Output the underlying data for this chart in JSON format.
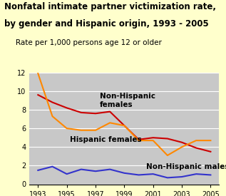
{
  "title_line1": "Nonfatal intimate partner victimization rate,",
  "title_line2": "by gender and Hispanic origin, 1993 - 2005",
  "subtitle": "Rate per 1,000 persons age 12 or older",
  "years": [
    1993,
    1994,
    1995,
    1996,
    1997,
    1998,
    1999,
    2000,
    2001,
    2002,
    2003,
    2004,
    2005
  ],
  "non_hispanic_females": [
    9.6,
    8.8,
    8.2,
    7.7,
    7.6,
    7.8,
    6.3,
    4.8,
    5.0,
    4.9,
    4.5,
    3.9,
    3.5
  ],
  "hispanic_females": [
    11.9,
    7.3,
    6.0,
    5.8,
    5.8,
    6.6,
    6.3,
    4.7,
    4.7,
    3.1,
    4.0,
    4.7,
    4.7
  ],
  "non_hispanic_males": [
    1.5,
    1.9,
    1.1,
    1.6,
    1.4,
    1.6,
    1.2,
    1.0,
    1.1,
    0.7,
    0.8,
    1.1,
    1.0
  ],
  "color_non_hispanic_females": "#cc0000",
  "color_hispanic_females": "#ff8800",
  "color_non_hispanic_males": "#3333cc",
  "plot_background": "#c8c8c8",
  "outer_background": "#ffffcc",
  "ylim": [
    0,
    12
  ],
  "yticks": [
    0,
    2,
    4,
    6,
    8,
    10,
    12
  ],
  "xticks": [
    1993,
    1995,
    1997,
    1999,
    2001,
    2003,
    2005
  ],
  "label_non_hispanic_females": "Non-Hispanic\nfemales",
  "label_hispanic_females": "Hispanic females",
  "label_non_hispanic_males": "Non-Hispanic males",
  "title_fontsize": 8.5,
  "subtitle_fontsize": 7.5,
  "label_fontsize": 7.5,
  "tick_fontsize": 7
}
